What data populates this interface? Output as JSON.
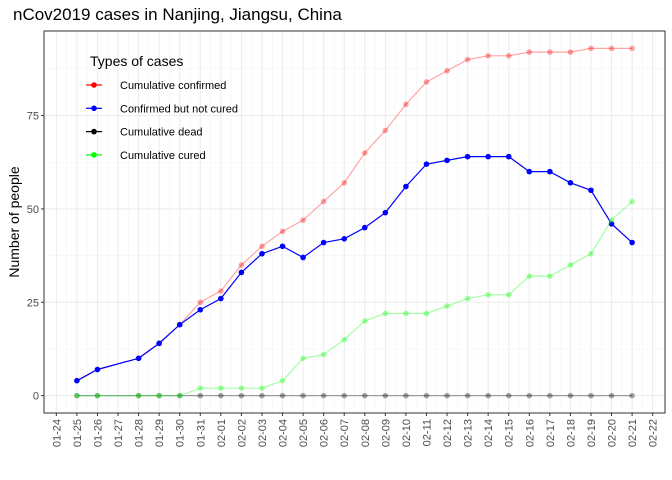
{
  "chart_data": {
    "type": "line",
    "title": "nCov2019 cases in Nanjing, Jiangsu, China",
    "xlabel": "",
    "ylabel": "Number of people",
    "ylim": [
      0,
      95
    ],
    "yticks": [
      0,
      25,
      50,
      75
    ],
    "grid": true,
    "legend_position": "top-left",
    "legend_title": "Types of cases",
    "x_tick_labels": [
      "01-24",
      "01-25",
      "01-26",
      "01-27",
      "01-28",
      "01-29",
      "01-30",
      "01-31",
      "02-01",
      "02-02",
      "02-03",
      "02-04",
      "02-05",
      "02-06",
      "02-07",
      "02-08",
      "02-09",
      "02-10",
      "02-11",
      "02-12",
      "02-13",
      "02-14",
      "02-15",
      "02-16",
      "02-17",
      "02-18",
      "02-19",
      "02-20",
      "02-21",
      "02-22"
    ],
    "x": [
      "01-25",
      "01-26",
      "01-28",
      "01-29",
      "01-30",
      "01-31",
      "02-01",
      "02-02",
      "02-03",
      "02-04",
      "02-05",
      "02-06",
      "02-07",
      "02-08",
      "02-09",
      "02-10",
      "02-11",
      "02-12",
      "02-13",
      "02-14",
      "02-15",
      "02-16",
      "02-17",
      "02-18",
      "02-19",
      "02-20",
      "02-21"
    ],
    "series": [
      {
        "name": "Cumulative confirmed",
        "color": "#ff0000",
        "alpha": 0.35,
        "values": [
          4,
          7,
          10,
          14,
          19,
          25,
          28,
          35,
          40,
          44,
          47,
          52,
          57,
          65,
          71,
          78,
          84,
          87,
          90,
          91,
          91,
          92,
          92,
          92,
          93,
          93,
          93
        ]
      },
      {
        "name": "Confirmed but not cured",
        "color": "#0000ff",
        "alpha": 1,
        "values": [
          4,
          7,
          10,
          14,
          19,
          23,
          26,
          33,
          38,
          40,
          37,
          41,
          42,
          45,
          49,
          56,
          62,
          63,
          64,
          64,
          64,
          60,
          60,
          57,
          55,
          46,
          41
        ]
      },
      {
        "name": "Cumulative dead",
        "color": "#000000",
        "alpha": 0.35,
        "values": [
          0,
          0,
          0,
          0,
          0,
          0,
          0,
          0,
          0,
          0,
          0,
          0,
          0,
          0,
          0,
          0,
          0,
          0,
          0,
          0,
          0,
          0,
          0,
          0,
          0,
          0,
          0
        ]
      },
      {
        "name": "Cumulative cured",
        "color": "#00ff00",
        "alpha": 0.35,
        "values": [
          0,
          0,
          0,
          0,
          0,
          2,
          2,
          2,
          2,
          4,
          10,
          11,
          15,
          20,
          22,
          22,
          22,
          24,
          26,
          27,
          27,
          32,
          32,
          35,
          38,
          47,
          52
        ]
      }
    ],
    "legend_colors": [
      "#ff0000",
      "#0000ff",
      "#000000",
      "#00ff00"
    ]
  }
}
